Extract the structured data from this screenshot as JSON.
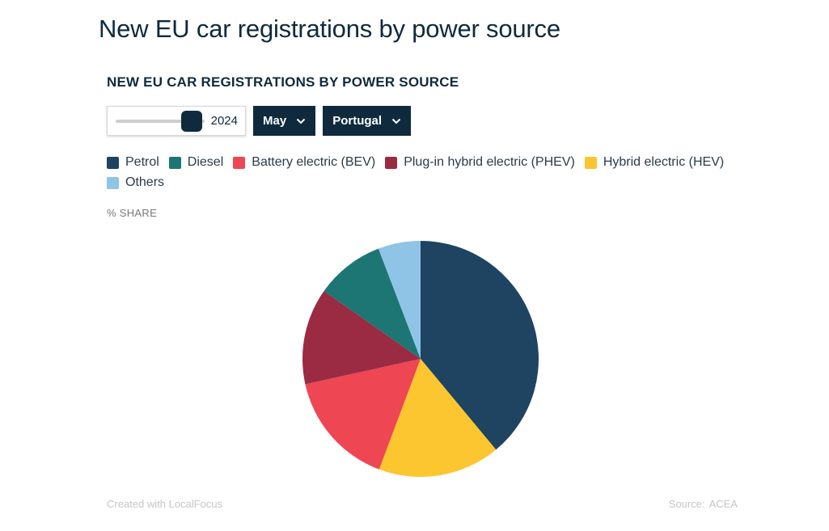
{
  "page": {
    "title": "New EU car registrations by power source"
  },
  "controls": {
    "year": {
      "value": "2024",
      "position": 0.86
    },
    "month": {
      "label": "May"
    },
    "country": {
      "label": "Portugal"
    }
  },
  "colors": {
    "petrol": "#1e4461",
    "diesel": "#1d7674",
    "bev": "#ee4652",
    "phev": "#9b2b42",
    "hev": "#fbc62f",
    "others": "#8fc4e7"
  },
  "chart_data": {
    "type": "pie",
    "title": "NEW EU CAR REGISTRATIONS BY POWER SOURCE",
    "unit_label": "% SHARE",
    "legend_position": "top",
    "categories": [
      "Petrol",
      "Diesel",
      "Battery electric (BEV)",
      "Plug-in hybrid electric (PHEV)",
      "Hybrid electric (HEV)",
      "Others"
    ],
    "slices": [
      {
        "label": "Petrol",
        "value": 39.6,
        "color": "#1e4461"
      },
      {
        "label": "Hybrid electric (HEV)",
        "value": 17.0,
        "color": "#fbc62f"
      },
      {
        "label": "Battery electric (BEV)",
        "value": 16.1,
        "color": "#ee4652"
      },
      {
        "label": "Plug-in hybrid electric (PHEV)",
        "value": 13.4,
        "color": "#9b2b42"
      },
      {
        "label": "Diesel",
        "value": 9.6,
        "color": "#1d7674"
      },
      {
        "label": "Others",
        "value": 5.9,
        "color": "#8fc4e7"
      }
    ]
  },
  "footer": {
    "credit": "Created with LocalFocus",
    "source_label": "Source:",
    "source_value": "ACEA"
  }
}
